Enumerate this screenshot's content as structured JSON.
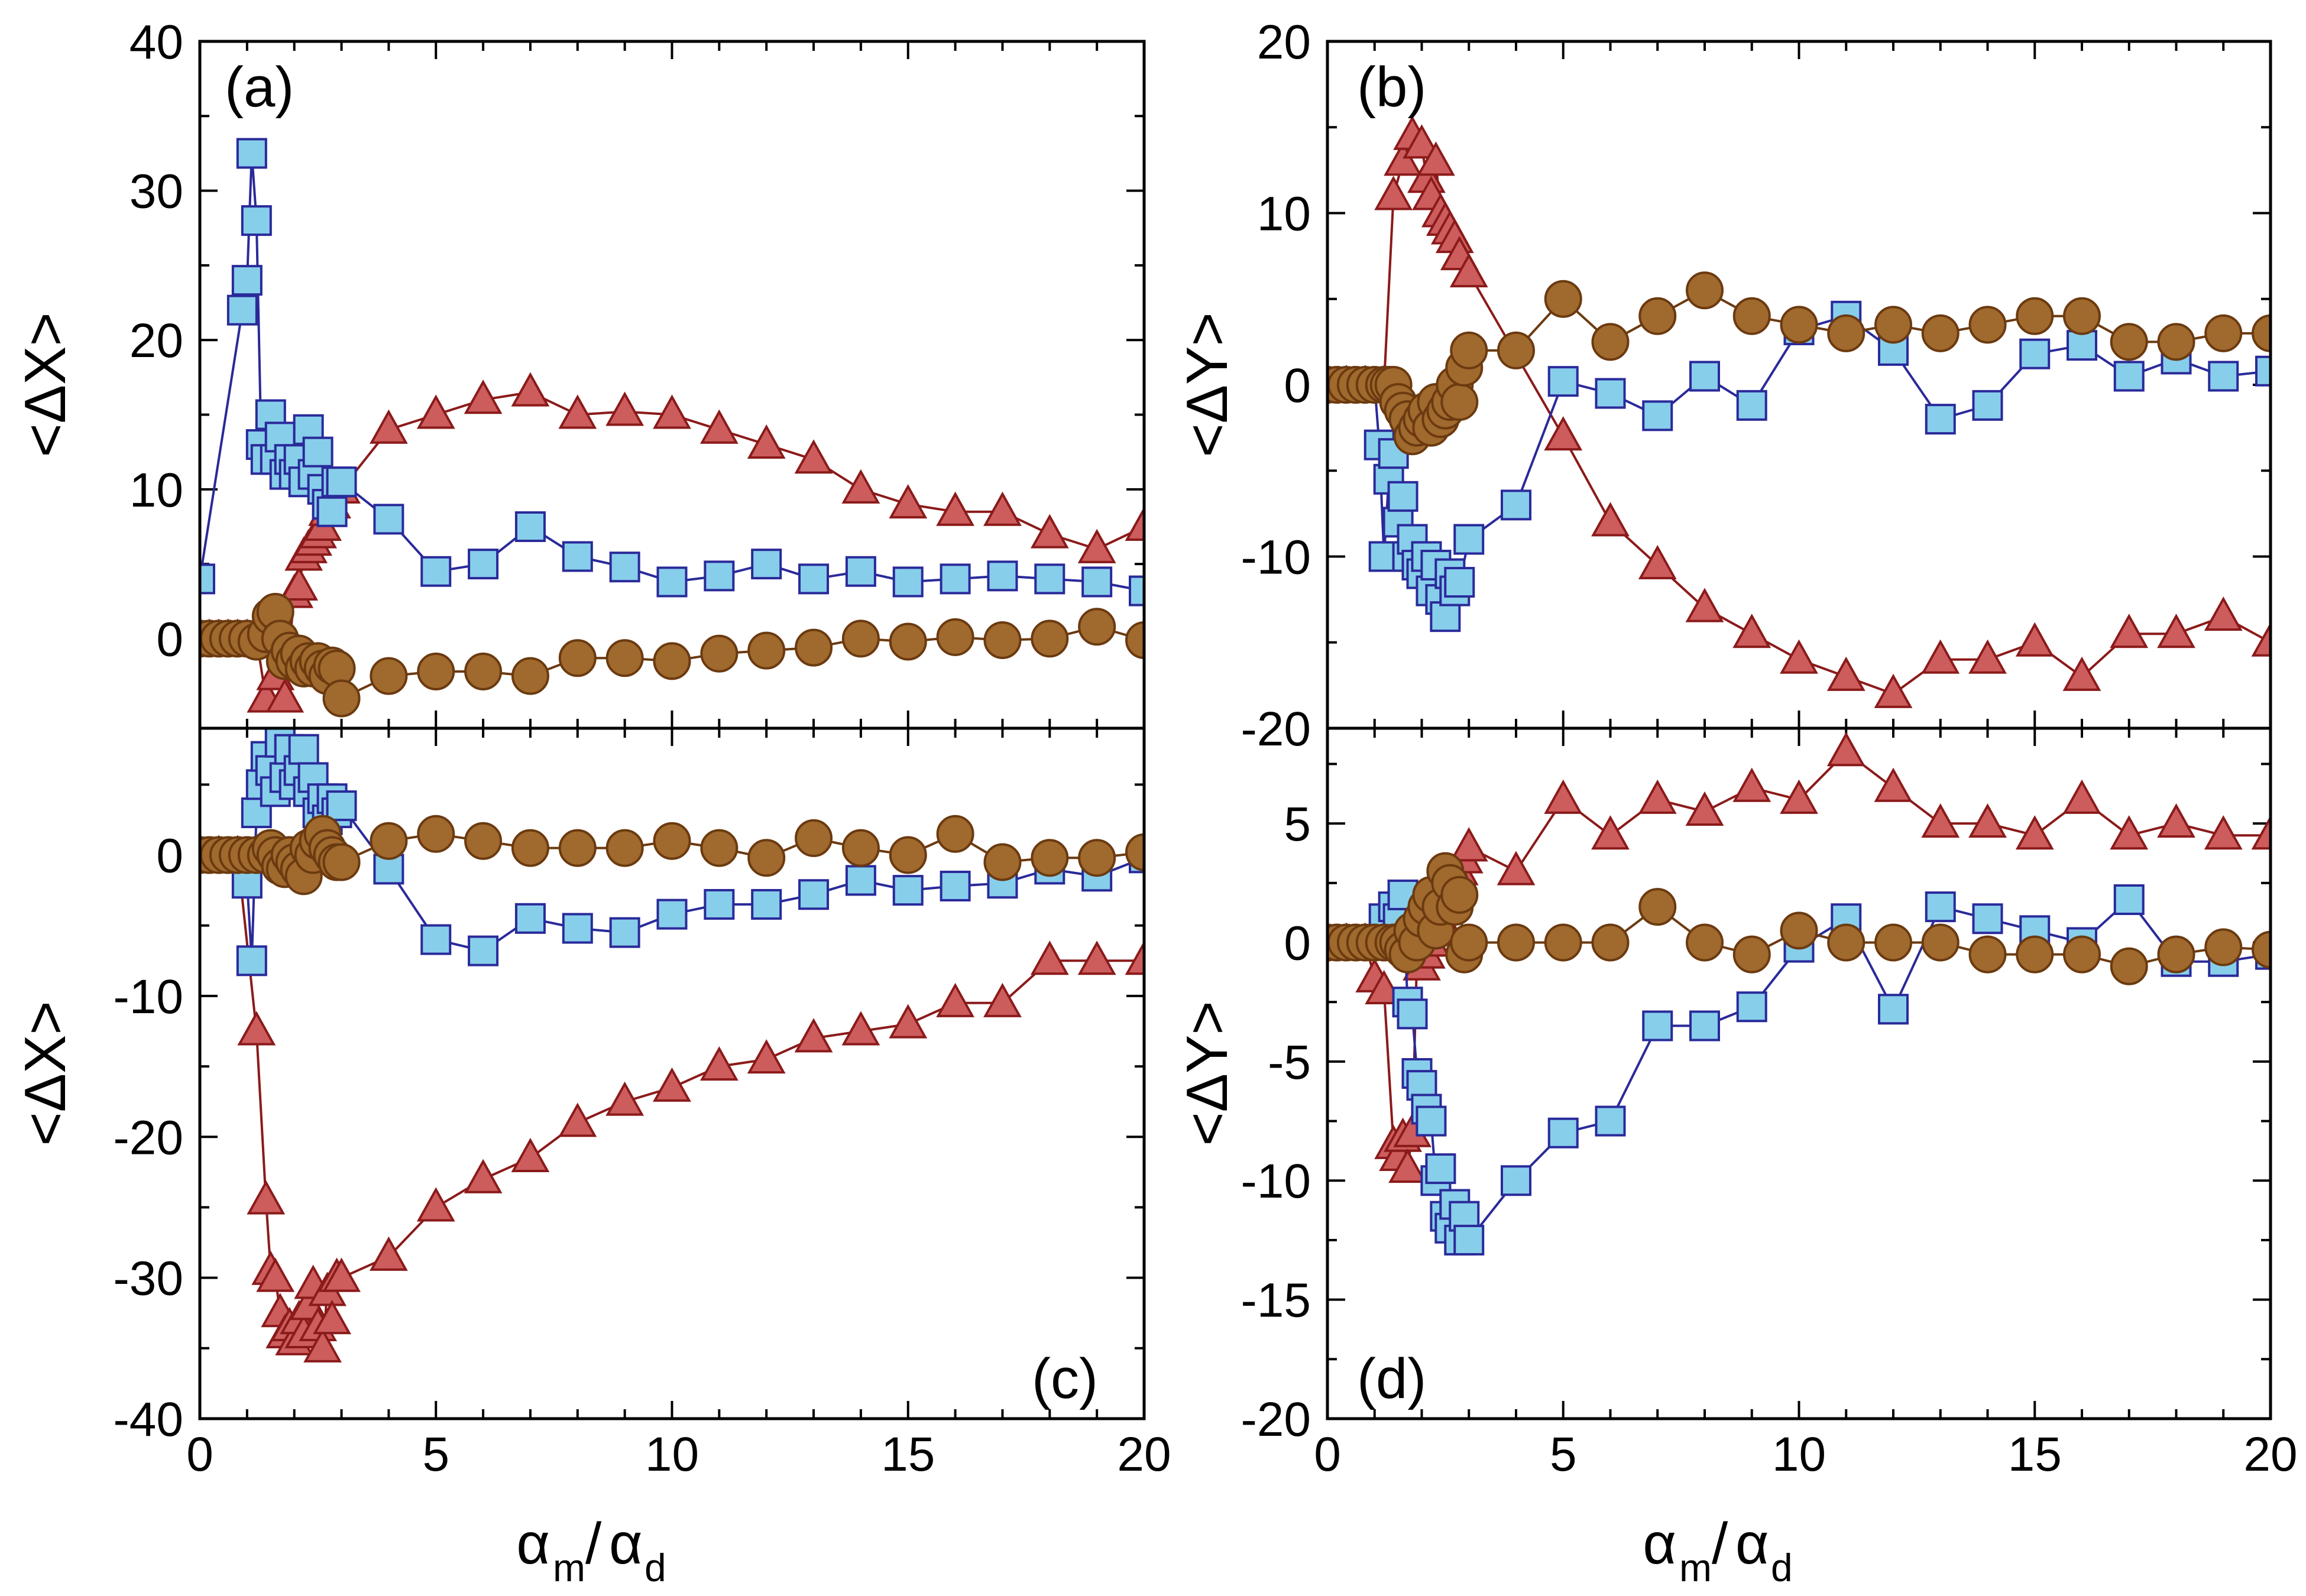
{
  "figure": {
    "x_axis_label": {
      "alpha": "α",
      "sub_m": "m",
      "slash": "/",
      "sub_d": "d"
    },
    "x_ticks": [
      "0",
      "5",
      "10",
      "15",
      "20"
    ]
  },
  "colors": {
    "square_fill": "#87ceeb",
    "square_edge": "#2a2a9a",
    "triangle_fill": "#cd5c5c",
    "triangle_edge": "#8b1a1a",
    "circle_fill": "#a0692d",
    "circle_edge": "#6b3a10"
  },
  "chart_data": [
    {
      "panel": "(a)",
      "type": "line",
      "ylabel": "<ΔX>",
      "xlim": [
        0,
        20
      ],
      "ylim": [
        -6,
        40
      ],
      "yticks": [
        0,
        10,
        20,
        30,
        40
      ],
      "ytick_labels": [
        "0",
        "10",
        "20",
        "30",
        "40"
      ],
      "series": [
        {
          "name": "squares",
          "marker": "square",
          "x": [
            0,
            0.9,
            1.0,
            1.1,
            1.2,
            1.3,
            1.4,
            1.5,
            1.6,
            1.7,
            1.8,
            1.9,
            2.0,
            2.1,
            2.2,
            2.3,
            2.4,
            2.5,
            2.6,
            2.7,
            2.8,
            2.9,
            3,
            4,
            5,
            6,
            7,
            8,
            9,
            10,
            11,
            12,
            13,
            14,
            15,
            16,
            17,
            18,
            19,
            20
          ],
          "y": [
            4,
            22,
            24,
            32.5,
            28,
            13,
            12,
            15,
            12,
            13.5,
            11,
            12,
            11,
            12,
            10.5,
            14,
            11,
            12.5,
            10,
            9,
            8.5,
            10.5,
            10.5,
            8,
            4.5,
            5,
            7.5,
            5.5,
            4.8,
            3.8,
            4.2,
            5,
            4,
            4.5,
            3.8,
            4,
            4.2,
            4,
            3.8,
            3.2
          ]
        },
        {
          "name": "triangles",
          "marker": "triangle",
          "x": [
            0,
            0.2,
            0.4,
            0.6,
            0.8,
            1.0,
            1.2,
            1.4,
            1.6,
            1.8,
            2.0,
            2.1,
            2.2,
            2.3,
            2.4,
            2.5,
            2.6,
            2.7,
            2.8,
            3,
            4,
            5,
            6,
            7,
            8,
            9,
            10,
            11,
            12,
            13,
            14,
            15,
            16,
            17,
            18,
            19,
            20
          ],
          "y": [
            0,
            0,
            0,
            0,
            0,
            0,
            0,
            -4,
            -2.5,
            -4,
            3,
            3.5,
            5.5,
            6,
            6.5,
            7,
            7.5,
            8.5,
            9,
            10,
            14,
            15,
            16,
            16.5,
            15,
            15.2,
            15,
            14,
            13,
            12,
            10,
            9,
            8.5,
            8.5,
            7,
            6,
            7.5
          ]
        },
        {
          "name": "circles",
          "marker": "circle",
          "x": [
            0,
            0.2,
            0.4,
            0.6,
            0.8,
            1.0,
            1.2,
            1.4,
            1.5,
            1.6,
            1.7,
            1.8,
            1.9,
            2.0,
            2.1,
            2.2,
            2.3,
            2.4,
            2.5,
            2.6,
            2.7,
            2.8,
            2.9,
            3,
            4,
            5,
            6,
            7,
            8,
            9,
            10,
            11,
            12,
            13,
            14,
            15,
            16,
            17,
            18,
            19,
            20
          ],
          "y": [
            0,
            0,
            0,
            0,
            0,
            0,
            -0.2,
            0.3,
            1.5,
            1.8,
            0,
            -1.5,
            -0.8,
            -1.5,
            -1,
            -2,
            -1.5,
            -2,
            -1.5,
            -2,
            -2.5,
            -1.8,
            -2,
            -4,
            -2.5,
            -2.2,
            -2.2,
            -2.5,
            -1.3,
            -1.3,
            -1.5,
            -1,
            -0.8,
            -0.6,
            0,
            -0.2,
            0.1,
            -0.1,
            0,
            0.8,
            -0.1
          ]
        }
      ]
    },
    {
      "panel": "(b)",
      "type": "line",
      "ylabel": "<ΔY>",
      "xlim": [
        0,
        20
      ],
      "ylim": [
        -20,
        20
      ],
      "yticks": [
        -20,
        -10,
        0,
        10,
        20
      ],
      "ytick_labels": [
        "-20",
        "-10",
        "0",
        "10",
        "20"
      ],
      "series": [
        {
          "name": "squares",
          "marker": "square",
          "x": [
            0,
            0.2,
            0.4,
            0.6,
            0.8,
            1.0,
            1.1,
            1.2,
            1.3,
            1.4,
            1.5,
            1.6,
            1.7,
            1.8,
            1.9,
            2.0,
            2.1,
            2.2,
            2.3,
            2.4,
            2.5,
            2.6,
            2.7,
            2.8,
            3,
            4,
            5,
            6,
            7,
            8,
            9,
            10,
            11,
            12,
            13,
            14,
            15,
            16,
            17,
            18,
            19,
            20
          ],
          "y": [
            0,
            0,
            0,
            0,
            0,
            0,
            -3.5,
            -10,
            -5.5,
            -4,
            -8,
            -6.5,
            -10,
            -9,
            -10.5,
            -11,
            -10,
            -12,
            -10.5,
            -12.5,
            -13.5,
            -11,
            -12,
            -11.5,
            -9,
            -7,
            0.2,
            -0.5,
            -1.8,
            0.5,
            -1.2,
            3.2,
            4,
            2,
            -2,
            -1.2,
            1.8,
            2.3,
            0.5,
            1.5,
            0.5,
            0.8
          ]
        },
        {
          "name": "triangles",
          "marker": "triangle",
          "x": [
            0,
            0.4,
            0.8,
            1.2,
            1.4,
            1.6,
            1.8,
            2.0,
            2.1,
            2.2,
            2.3,
            2.4,
            2.5,
            2.6,
            2.7,
            2.8,
            3,
            5,
            6,
            7,
            8,
            9,
            10,
            11,
            12,
            13,
            14,
            15,
            16,
            17,
            18,
            19,
            20
          ],
          "y": [
            0,
            0,
            0,
            0,
            11,
            13,
            14.5,
            14,
            12,
            11,
            13,
            10,
            9.5,
            9,
            8.5,
            7.5,
            6.5,
            -3,
            -8,
            -10.5,
            -13,
            -14.5,
            -16,
            -17,
            -18,
            -16,
            -16,
            -15,
            -17,
            -14.5,
            -14.5,
            -13.5,
            -15
          ]
        },
        {
          "name": "circles",
          "marker": "circle",
          "x": [
            0,
            0.2,
            0.4,
            0.6,
            0.8,
            1.0,
            1.2,
            1.3,
            1.4,
            1.5,
            1.6,
            1.7,
            1.8,
            1.9,
            2.0,
            2.1,
            2.2,
            2.3,
            2.4,
            2.5,
            2.6,
            2.7,
            2.8,
            2.9,
            3,
            4,
            5,
            6,
            7,
            8,
            9,
            10,
            11,
            12,
            13,
            14,
            15,
            16,
            17,
            18,
            19,
            20
          ],
          "y": [
            0,
            0,
            0,
            0,
            0,
            0,
            0,
            0,
            0,
            -1,
            -1.5,
            -2,
            -3,
            -2.5,
            -2,
            -1.5,
            -2.5,
            -1,
            -2,
            -1.5,
            -1,
            0,
            -1,
            1,
            2,
            2,
            5,
            2.5,
            4,
            5.5,
            4,
            3.5,
            3,
            3.5,
            3,
            3.5,
            4,
            4,
            2.5,
            2.5,
            3,
            3
          ]
        }
      ]
    },
    {
      "panel": "(c)",
      "type": "line",
      "ylabel": "<ΔX>",
      "xlim": [
        0,
        20
      ],
      "ylim": [
        -40,
        9
      ],
      "yticks": [
        -40,
        -30,
        -20,
        -10,
        0
      ],
      "ytick_labels": [
        "-40",
        "-30",
        "-20",
        "-10",
        "0"
      ],
      "series": [
        {
          "name": "squares",
          "marker": "square",
          "x": [
            0,
            0.4,
            0.8,
            1.0,
            1.1,
            1.2,
            1.3,
            1.4,
            1.5,
            1.6,
            1.7,
            1.8,
            1.9,
            2.0,
            2.1,
            2.2,
            2.3,
            2.4,
            2.5,
            2.6,
            2.7,
            2.8,
            2.9,
            3,
            4,
            5,
            6,
            7,
            8,
            9,
            10,
            11,
            12,
            13,
            14,
            15,
            16,
            17,
            18,
            19,
            20
          ],
          "y": [
            0,
            0,
            0,
            -2,
            -7.5,
            3,
            5,
            7,
            6,
            4.5,
            8,
            5.5,
            7.5,
            5,
            6,
            7.5,
            4.5,
            5.5,
            3,
            4,
            2.5,
            4,
            3,
            3.5,
            -1,
            -6,
            -6.8,
            -4.5,
            -5.2,
            -5.5,
            -4.2,
            -3.5,
            -3.5,
            -2.8,
            -1.8,
            -2.5,
            -2.2,
            -2,
            -1,
            -1.5,
            -0.2
          ]
        },
        {
          "name": "triangles",
          "marker": "triangle",
          "x": [
            0,
            0.4,
            0.8,
            1.2,
            1.4,
            1.5,
            1.6,
            1.7,
            1.8,
            1.9,
            2.0,
            2.1,
            2.2,
            2.3,
            2.4,
            2.5,
            2.6,
            2.7,
            2.8,
            2.9,
            3,
            4,
            5,
            6,
            7,
            8,
            9,
            10,
            11,
            12,
            13,
            14,
            15,
            16,
            17,
            18,
            19,
            20
          ],
          "y": [
            0,
            0,
            0,
            -12.5,
            -24.5,
            -29.5,
            -30,
            -32.5,
            -34,
            -33.5,
            -34.5,
            -33,
            -34,
            -32,
            -30.5,
            -33.5,
            -35,
            -31,
            -33,
            -30,
            -30,
            -28.5,
            -25,
            -23,
            -21.5,
            -19,
            -17.5,
            -16.5,
            -15,
            -14.5,
            -13,
            -12.5,
            -12,
            -10.5,
            -10.5,
            -7.5,
            -7.5,
            -7.5
          ]
        },
        {
          "name": "circles",
          "marker": "circle",
          "x": [
            0,
            0.2,
            0.4,
            0.6,
            0.8,
            1.0,
            1.2,
            1.4,
            1.5,
            1.6,
            1.7,
            1.8,
            1.9,
            2.0,
            2.1,
            2.2,
            2.3,
            2.4,
            2.5,
            2.6,
            2.7,
            2.8,
            2.9,
            3,
            4,
            5,
            6,
            7,
            8,
            9,
            10,
            11,
            12,
            13,
            14,
            15,
            16,
            17,
            18,
            19,
            20
          ],
          "y": [
            0,
            0,
            0,
            0,
            0,
            0,
            0,
            0,
            0.5,
            0,
            -0.8,
            -1,
            0,
            -0.5,
            -1,
            -1.5,
            0.5,
            0,
            1,
            1.5,
            0.5,
            0,
            -0.5,
            -0.5,
            1,
            1.5,
            1,
            0.5,
            0.5,
            0.5,
            1,
            0.5,
            -0.2,
            1.2,
            0.5,
            0,
            1.5,
            -0.5,
            -0.2,
            -0.2,
            0.2
          ]
        }
      ]
    },
    {
      "panel": "(d)",
      "type": "line",
      "ylabel": "<ΔY>",
      "xlim": [
        0,
        20
      ],
      "ylim": [
        -20,
        9
      ],
      "yticks": [
        -20,
        -15,
        -10,
        -5,
        0,
        5
      ],
      "ytick_labels": [
        "-20",
        "-15",
        "-10",
        "-5",
        "0",
        "5"
      ],
      "series": [
        {
          "name": "squares",
          "marker": "square",
          "x": [
            0,
            0.2,
            0.4,
            0.6,
            0.8,
            1.0,
            1.2,
            1.4,
            1.5,
            1.6,
            1.7,
            1.8,
            1.9,
            2.0,
            2.1,
            2.2,
            2.3,
            2.4,
            2.5,
            2.6,
            2.7,
            2.8,
            2.9,
            3,
            4,
            5,
            6,
            7,
            8,
            9,
            10,
            11,
            12,
            13,
            14,
            15,
            16,
            17,
            18,
            19,
            20
          ],
          "y": [
            0,
            0,
            0,
            0,
            0,
            0,
            1,
            1.5,
            1,
            2,
            -2.5,
            -3,
            -5.5,
            -6,
            -7,
            -7.5,
            -10,
            -9.5,
            -11.5,
            -12,
            -11,
            -12.5,
            -11.5,
            -12.5,
            -10,
            -8,
            -7.5,
            -3.5,
            -3.5,
            -2.7,
            -0.2,
            1,
            -2.8,
            1.5,
            1,
            0.5,
            0,
            1.8,
            -0.8,
            -0.8,
            -0.5
          ]
        },
        {
          "name": "triangles",
          "marker": "triangle",
          "x": [
            0,
            0.4,
            0.8,
            1.0,
            1.2,
            1.4,
            1.5,
            1.6,
            1.7,
            1.8,
            1.9,
            2.0,
            2.1,
            2.2,
            2.3,
            2.4,
            2.5,
            2.6,
            2.7,
            2.8,
            2.9,
            3,
            4,
            5,
            6,
            7,
            8,
            9,
            10,
            11,
            12,
            13,
            14,
            15,
            16,
            17,
            18,
            19,
            20
          ],
          "y": [
            0,
            0,
            0,
            -1.5,
            -2,
            -8.5,
            -9,
            -8.2,
            -9.5,
            -8,
            -0.5,
            -1,
            -0.5,
            0,
            0.5,
            1,
            1.5,
            2,
            2.5,
            3,
            3.5,
            4,
            3,
            6,
            4.5,
            6,
            5.5,
            6.5,
            6,
            8,
            6.5,
            5,
            5,
            4.5,
            6,
            4.5,
            5,
            4.5,
            4.5
          ]
        },
        {
          "name": "circles",
          "marker": "circle",
          "x": [
            0,
            0.2,
            0.4,
            0.6,
            0.8,
            1.0,
            1.2,
            1.4,
            1.5,
            1.6,
            1.7,
            1.8,
            1.9,
            2.0,
            2.1,
            2.2,
            2.3,
            2.4,
            2.5,
            2.6,
            2.7,
            2.8,
            2.9,
            3,
            4,
            5,
            6,
            7,
            8,
            9,
            10,
            11,
            12,
            13,
            14,
            15,
            16,
            17,
            18,
            19,
            20
          ],
          "y": [
            0,
            0,
            0,
            0,
            0,
            0,
            0,
            0,
            0,
            -0.3,
            -0.5,
            0.5,
            0,
            1,
            1.5,
            2,
            0.5,
            1.5,
            3,
            2.5,
            1.5,
            2,
            -0.5,
            0,
            0,
            0,
            0,
            1.5,
            0,
            -0.5,
            0.5,
            0,
            0,
            0,
            -0.5,
            -0.5,
            -0.5,
            -1,
            -0.5,
            -0.2,
            -0.3
          ]
        }
      ]
    }
  ]
}
